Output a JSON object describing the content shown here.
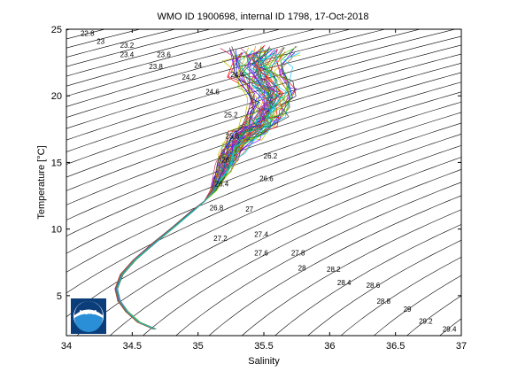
{
  "chart_data": {
    "type": "line",
    "title": "WMO ID 1900698, internal ID 1798, 17-Oct-2018",
    "xlabel": "Salinity",
    "ylabel": "Temperature [°C]",
    "xlim": [
      34,
      37
    ],
    "ylim": [
      2,
      25
    ],
    "xticks": [
      "34",
      "34.5",
      "35",
      "35.5",
      "36",
      "36.5",
      "37"
    ],
    "yticks": [
      "5",
      "10",
      "15",
      "20",
      "25"
    ],
    "grid": false,
    "logo": "NOAA",
    "density_contours": {
      "levels": [
        22.6,
        22.8,
        23.0,
        23.2,
        23.4,
        23.6,
        23.8,
        24.0,
        24.2,
        24.4,
        24.6,
        24.8,
        25.0,
        25.2,
        25.4,
        25.6,
        25.8,
        26.0,
        26.2,
        26.4,
        26.6,
        26.8,
        27.0,
        27.2,
        27.4,
        27.6,
        27.8,
        28.0,
        28.2,
        28.4,
        28.6,
        28.8,
        29.0,
        29.2,
        29.4
      ],
      "labels": [
        {
          "text": "22.8",
          "s": 34.16,
          "t": 24.7
        },
        {
          "text": "23",
          "s": 34.26,
          "t": 24.1
        },
        {
          "text": "23.2",
          "s": 34.46,
          "t": 23.8
        },
        {
          "text": "23.4",
          "s": 34.46,
          "t": 23.1
        },
        {
          "text": "23.6",
          "s": 34.74,
          "t": 23.1
        },
        {
          "text": "23.8",
          "s": 34.68,
          "t": 22.2
        },
        {
          "text": "24",
          "s": 35.0,
          "t": 22.3
        },
        {
          "text": "24.2",
          "s": 34.93,
          "t": 21.4
        },
        {
          "text": "24.4",
          "s": 35.3,
          "t": 21.6
        },
        {
          "text": "24.6",
          "s": 35.11,
          "t": 20.3
        },
        {
          "text": "25.2",
          "s": 35.25,
          "t": 18.6
        },
        {
          "text": "25.8",
          "s": 35.26,
          "t": 17.0
        },
        {
          "text": "26",
          "s": 35.21,
          "t": 15.2
        },
        {
          "text": "26.2",
          "s": 35.55,
          "t": 15.5
        },
        {
          "text": "26.4",
          "s": 35.18,
          "t": 13.4
        },
        {
          "text": "26.6",
          "s": 35.52,
          "t": 13.8
        },
        {
          "text": "26.8",
          "s": 35.14,
          "t": 11.6
        },
        {
          "text": "27",
          "s": 35.39,
          "t": 11.5
        },
        {
          "text": "27.2",
          "s": 35.17,
          "t": 9.3
        },
        {
          "text": "27.4",
          "s": 35.48,
          "t": 9.6
        },
        {
          "text": "27.6",
          "s": 35.48,
          "t": 8.2
        },
        {
          "text": "27.8",
          "s": 35.76,
          "t": 8.2
        },
        {
          "text": "28",
          "s": 35.79,
          "t": 7.1
        },
        {
          "text": "28.2",
          "s": 36.03,
          "t": 7.0
        },
        {
          "text": "28.4",
          "s": 36.11,
          "t": 6.0
        },
        {
          "text": "28.6",
          "s": 36.33,
          "t": 5.8
        },
        {
          "text": "28.8",
          "s": 36.41,
          "t": 4.6
        },
        {
          "text": "29",
          "s": 36.59,
          "t": 4.0
        },
        {
          "text": "29.2",
          "s": 36.73,
          "t": 3.1
        },
        {
          "text": "29.4",
          "s": 36.91,
          "t": 2.5
        }
      ]
    },
    "profile_envelope": {
      "salinity": [
        34.67,
        34.55,
        34.46,
        34.4,
        34.38,
        34.42,
        34.52,
        34.66,
        34.82,
        34.95,
        35.05,
        35.12,
        35.16,
        35.2,
        35.23,
        35.26,
        35.3,
        35.35,
        35.42,
        35.48,
        35.52,
        35.55,
        35.56,
        35.5,
        35.45,
        35.44,
        35.5
      ],
      "temperature": [
        2.5,
        3.0,
        3.8,
        4.6,
        5.5,
        6.6,
        7.7,
        8.9,
        10.2,
        11.3,
        12.1,
        12.9,
        13.8,
        14.6,
        15.3,
        15.9,
        16.5,
        17.0,
        17.5,
        18.0,
        18.7,
        19.5,
        20.2,
        21.0,
        21.8,
        22.6,
        23.4
      ]
    }
  }
}
